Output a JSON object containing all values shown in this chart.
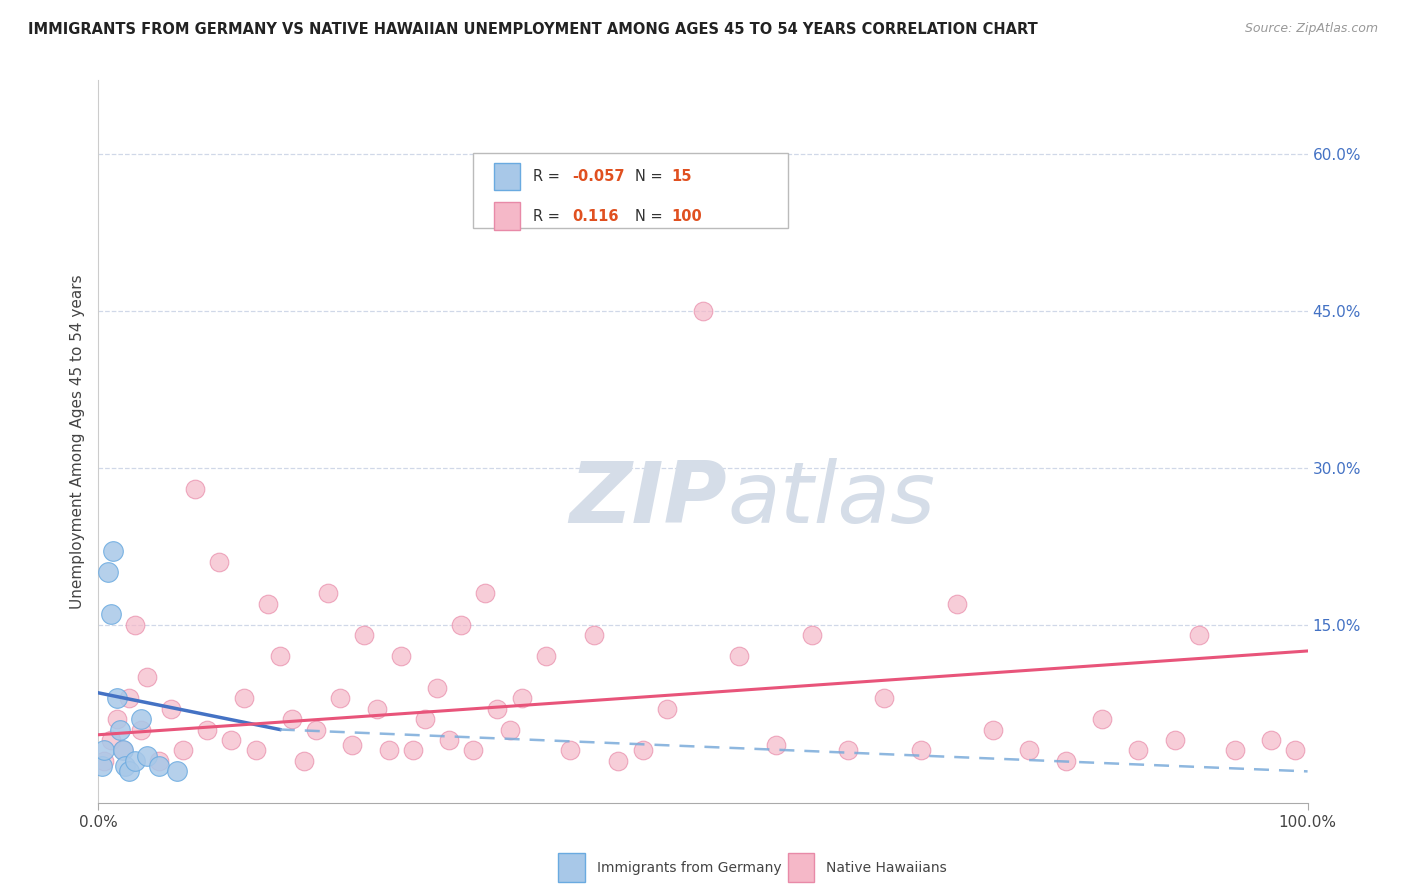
{
  "title": "IMMIGRANTS FROM GERMANY VS NATIVE HAWAIIAN UNEMPLOYMENT AMONG AGES 45 TO 54 YEARS CORRELATION CHART",
  "source": "Source: ZipAtlas.com",
  "ylabel": "Unemployment Among Ages 45 to 54 years",
  "xlim": [
    0,
    100
  ],
  "ylim": [
    -2,
    67
  ],
  "ytick_vals": [
    15,
    30,
    45,
    60
  ],
  "ytick_labels": [
    "15.0%",
    "30.0%",
    "45.0%",
    "60.0%"
  ],
  "xtick_vals": [
    0,
    100
  ],
  "xtick_labels": [
    "0.0%",
    "100.0%"
  ],
  "blue_fill": "#a8c8e8",
  "blue_edge": "#6aaae0",
  "pink_fill": "#f5b8c8",
  "pink_edge": "#e88aa8",
  "blue_line": "#4472c4",
  "blue_dash": "#7aabda",
  "pink_line": "#e8547a",
  "grid_color": "#d0d8e8",
  "watermark_color": "#d5dde8",
  "blue_points_x": [
    0.3,
    0.5,
    0.8,
    1.0,
    1.2,
    1.5,
    1.8,
    2.0,
    2.2,
    2.5,
    3.0,
    3.5,
    4.0,
    5.0,
    6.5
  ],
  "blue_points_y": [
    1.5,
    3.0,
    20.0,
    16.0,
    22.0,
    8.0,
    5.0,
    3.0,
    1.5,
    1.0,
    2.0,
    6.0,
    2.5,
    1.5,
    1.0
  ],
  "pink_points_x": [
    0.5,
    1.0,
    1.5,
    2.0,
    2.5,
    3.0,
    3.5,
    4.0,
    5.0,
    6.0,
    7.0,
    8.0,
    9.0,
    10.0,
    11.0,
    12.0,
    13.0,
    14.0,
    15.0,
    16.0,
    17.0,
    18.0,
    19.0,
    20.0,
    21.0,
    22.0,
    23.0,
    24.0,
    25.0,
    26.0,
    27.0,
    28.0,
    29.0,
    30.0,
    31.0,
    32.0,
    33.0,
    34.0,
    35.0,
    37.0,
    39.0,
    41.0,
    43.0,
    45.0,
    47.0,
    50.0,
    53.0,
    56.0,
    59.0,
    62.0,
    65.0,
    68.0,
    71.0,
    74.0,
    77.0,
    80.0,
    83.0,
    86.0,
    89.0,
    91.0,
    94.0,
    97.0,
    99.0
  ],
  "pink_points_y": [
    2.0,
    4.0,
    6.0,
    3.0,
    8.0,
    15.0,
    5.0,
    10.0,
    2.0,
    7.0,
    3.0,
    28.0,
    5.0,
    21.0,
    4.0,
    8.0,
    3.0,
    17.0,
    12.0,
    6.0,
    2.0,
    5.0,
    18.0,
    8.0,
    3.5,
    14.0,
    7.0,
    3.0,
    12.0,
    3.0,
    6.0,
    9.0,
    4.0,
    15.0,
    3.0,
    18.0,
    7.0,
    5.0,
    8.0,
    12.0,
    3.0,
    14.0,
    2.0,
    3.0,
    7.0,
    45.0,
    12.0,
    3.5,
    14.0,
    3.0,
    8.0,
    3.0,
    17.0,
    5.0,
    3.0,
    2.0,
    6.0,
    3.0,
    4.0,
    14.0,
    3.0,
    4.0,
    3.0
  ],
  "blue_line_x0": 0,
  "blue_line_x1": 15,
  "blue_line_y0": 8.5,
  "blue_line_y1": 5.0,
  "blue_dash_x0": 15,
  "blue_dash_x1": 100,
  "blue_dash_y0": 5.0,
  "blue_dash_y1": 1.0,
  "pink_line_x0": 0,
  "pink_line_x1": 100,
  "pink_line_y0": 4.5,
  "pink_line_y1": 12.5
}
